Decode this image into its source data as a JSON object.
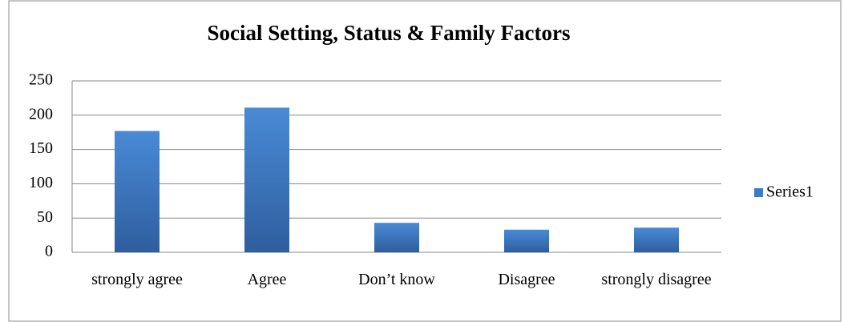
{
  "chart_data": {
    "type": "bar",
    "title": "Social  Setting, Status & Family Factors",
    "categories": [
      "strongly agree",
      "Agree",
      "Don’t know",
      "Disagree",
      "strongly disagree"
    ],
    "series": [
      {
        "name": "Series1",
        "color": "#3d7cc9",
        "values": [
          177,
          211,
          43,
          33,
          36
        ]
      }
    ],
    "ylim": [
      0,
      250
    ],
    "yticks": [
      0,
      50,
      100,
      150,
      200,
      250
    ],
    "grid": true,
    "legend": "right"
  }
}
